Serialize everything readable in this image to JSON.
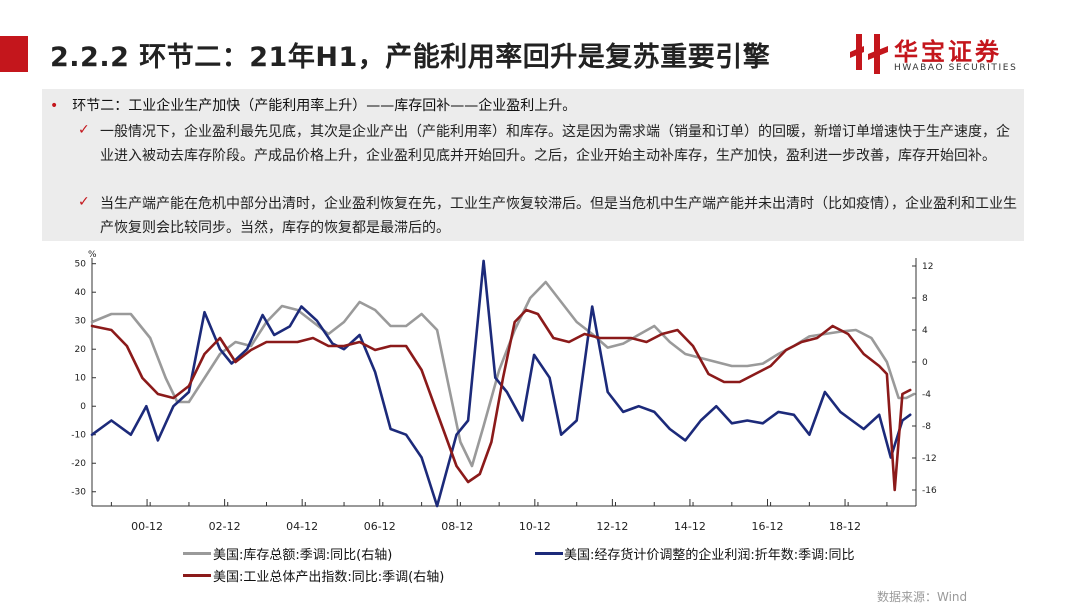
{
  "slide": {
    "title": "2.2.2 环节二：21年H1，产能利用率回升是复苏重要引擎",
    "logo_cn": "华宝证券",
    "logo_en": "HWABAO SECURITIES",
    "bullet": "环节二：工业企业生产加快（产能利用率上升）——库存回补——企业盈利上升。",
    "check1": "一般情况下，企业盈利最先见底，其次是企业产出（产能利用率）和库存。这是因为需求端（销量和订单）的回暖，新增订单增速快于生产速度，企业进入被动去库存阶段。产成品价格上升，企业盈利见底并开始回升。之后，企业开始主动补库存，生产加快，盈利进一步改善，库存开始回补。",
    "check2": "当生产端产能在危机中部分出清时，企业盈利恢复在先，工业生产恢复较滞后。但是当危机中生产端产能并未出清时（比如疫情），企业盈利和工业生产恢复则会比较同步。当然，库存的恢复都是最滞后的。",
    "source": "数据来源：Wind",
    "colors": {
      "accent": "#c4161c",
      "gray_series": "#9a9a9a",
      "navy_series": "#1c2a7a",
      "maroon_series": "#8b1a1a"
    }
  },
  "chart_data": {
    "type": "line",
    "x_start": 1999.5,
    "x_end": 2020.75,
    "x_tick_labels": [
      "00-12",
      "02-12",
      "04-12",
      "06-12",
      "08-12",
      "10-12",
      "12-12",
      "14-12",
      "16-12",
      "18-12"
    ],
    "x_tick_positions": [
      2000.92,
      2002.92,
      2004.92,
      2006.92,
      2008.92,
      2010.92,
      2012.92,
      2014.92,
      2016.92,
      2018.92
    ],
    "y_left_unit": "%",
    "ylim_left": [
      -35,
      52
    ],
    "y_left_ticks": [
      50,
      40,
      30,
      20,
      10,
      0,
      -10,
      -20,
      -30
    ],
    "ylim_right": [
      -18,
      13
    ],
    "y_right_ticks": [
      12,
      8,
      4,
      0,
      -4,
      -8,
      -12,
      -16
    ],
    "series": [
      {
        "name": "美国:库存总额:季调:同比(右轴)",
        "axis": "right",
        "color": "#9a9a9a",
        "x": [
          1999.5,
          2000.0,
          2000.5,
          2001.0,
          2001.4,
          2001.7,
          2002.0,
          2002.4,
          2002.8,
          2003.2,
          2003.6,
          2004.0,
          2004.4,
          2004.8,
          2005.2,
          2005.6,
          2006.0,
          2006.4,
          2006.8,
          2007.2,
          2007.6,
          2008.0,
          2008.4,
          2008.7,
          2009.0,
          2009.3,
          2009.6,
          2010.0,
          2010.4,
          2010.8,
          2011.2,
          2011.6,
          2012.0,
          2012.4,
          2012.8,
          2013.2,
          2013.6,
          2014.0,
          2014.4,
          2014.8,
          2015.2,
          2015.6,
          2016.0,
          2016.4,
          2016.8,
          2017.2,
          2017.6,
          2018.0,
          2018.4,
          2018.8,
          2019.2,
          2019.6,
          2020.0,
          2020.3,
          2020.5,
          2020.7
        ],
        "y": [
          5.0,
          6.0,
          6.0,
          3.0,
          -2.0,
          -5.0,
          -5.0,
          -2.0,
          1.0,
          2.5,
          2.0,
          5.0,
          7.0,
          6.5,
          5.0,
          3.5,
          5.0,
          7.5,
          6.5,
          4.5,
          4.5,
          6.0,
          4.0,
          -3.0,
          -10.0,
          -13.0,
          -8.0,
          -1.0,
          4.0,
          8.0,
          10.0,
          7.5,
          5.0,
          3.5,
          1.8,
          2.3,
          3.4,
          4.5,
          2.5,
          1.0,
          0.5,
          0.0,
          -0.5,
          -0.5,
          -0.2,
          1.0,
          2.0,
          3.2,
          3.5,
          3.8,
          4.0,
          3.0,
          0.0,
          -4.5,
          -4.5,
          -4.0
        ]
      },
      {
        "name": "美国:经存货计价调整的企业利润:折年数:季调:同比",
        "axis": "left",
        "color": "#1c2a7a",
        "x": [
          1999.5,
          2000.0,
          2000.5,
          2000.9,
          2001.2,
          2001.6,
          2002.0,
          2002.4,
          2002.8,
          2003.1,
          2003.5,
          2003.9,
          2004.2,
          2004.6,
          2004.9,
          2005.3,
          2005.7,
          2006.0,
          2006.4,
          2006.8,
          2007.2,
          2007.6,
          2008.0,
          2008.4,
          2008.9,
          2009.2,
          2009.6,
          2009.9,
          2010.2,
          2010.6,
          2010.9,
          2011.3,
          2011.6,
          2012.0,
          2012.4,
          2012.8,
          2013.2,
          2013.6,
          2014.0,
          2014.4,
          2014.8,
          2015.2,
          2015.6,
          2016.0,
          2016.4,
          2016.8,
          2017.2,
          2017.6,
          2018.0,
          2018.4,
          2018.8,
          2019.1,
          2019.4,
          2019.8,
          2020.1,
          2020.4,
          2020.6
        ],
        "y": [
          -10,
          -5,
          -10,
          0,
          -12,
          0,
          5,
          33,
          20,
          15,
          20,
          32,
          25,
          28,
          35,
          30,
          22,
          20,
          25,
          12,
          -8,
          -10,
          -18,
          -35,
          -10,
          -5,
          51,
          10,
          5,
          -5,
          18,
          10,
          -10,
          -5,
          35,
          5,
          -2,
          0,
          -2,
          -8,
          -12,
          -5,
          0,
          -6,
          -5,
          -6,
          -2,
          -3,
          -10,
          5,
          -2,
          -5,
          -8,
          -3,
          -18,
          -5,
          -3
        ]
      },
      {
        "name": "美国:工业总体产出指数:同比:季调(右轴)",
        "axis": "right",
        "color": "#8b1a1a",
        "x": [
          1999.5,
          2000.0,
          2000.4,
          2000.8,
          2001.2,
          2001.6,
          2002.0,
          2002.4,
          2002.8,
          2003.2,
          2003.6,
          2004.0,
          2004.4,
          2004.8,
          2005.2,
          2005.6,
          2006.0,
          2006.4,
          2006.8,
          2007.2,
          2007.6,
          2008.0,
          2008.3,
          2008.6,
          2008.9,
          2009.2,
          2009.5,
          2009.8,
          2010.1,
          2010.4,
          2010.7,
          2011.0,
          2011.4,
          2011.8,
          2012.2,
          2012.6,
          2013.0,
          2013.4,
          2013.8,
          2014.2,
          2014.6,
          2015.0,
          2015.4,
          2015.8,
          2016.2,
          2016.6,
          2017.0,
          2017.4,
          2017.8,
          2018.2,
          2018.6,
          2019.0,
          2019.4,
          2019.8,
          2020.0,
          2020.2,
          2020.4,
          2020.6
        ],
        "y": [
          4.5,
          4.0,
          2.0,
          -2.0,
          -4.0,
          -4.5,
          -3.0,
          1.0,
          3.0,
          0.0,
          1.5,
          2.5,
          2.5,
          2.5,
          3.0,
          2.0,
          2.0,
          2.5,
          1.5,
          2.0,
          2.0,
          -1.0,
          -5.0,
          -9.0,
          -13.0,
          -15.0,
          -14.0,
          -10.0,
          -2.0,
          5.0,
          6.5,
          6.0,
          3.0,
          2.5,
          3.5,
          3.0,
          3.0,
          3.0,
          2.5,
          3.5,
          4.0,
          2.0,
          -1.5,
          -2.5,
          -2.5,
          -1.5,
          -0.5,
          1.5,
          2.5,
          3.0,
          4.5,
          3.5,
          1.0,
          -0.5,
          -1.5,
          -16.0,
          -4.0,
          -3.5
        ]
      }
    ],
    "legend": [
      {
        "label": "美国:库存总额:季调:同比(右轴)",
        "color": "#9a9a9a"
      },
      {
        "label": "美国:经存货计价调整的企业利润:折年数:季调:同比",
        "color": "#1c2a7a"
      },
      {
        "label": "美国:工业总体产出指数:同比:季调(右轴)",
        "color": "#8b1a1a"
      }
    ],
    "grid": false
  }
}
